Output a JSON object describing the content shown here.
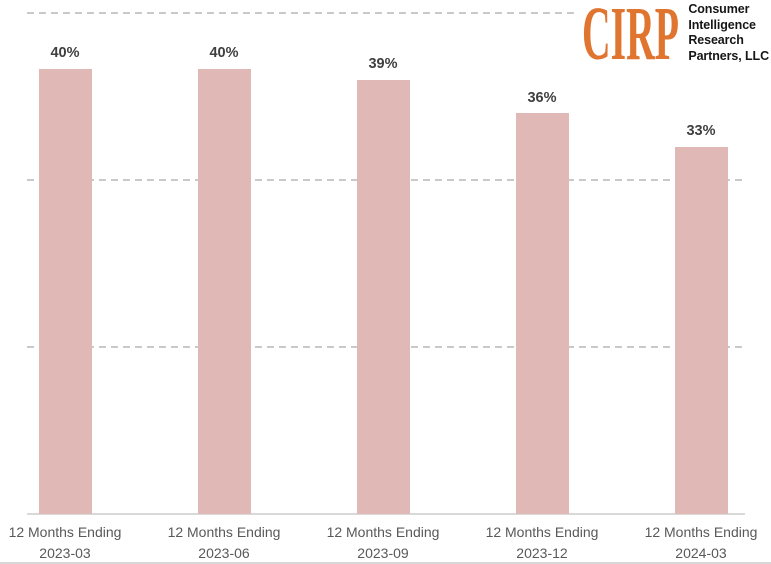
{
  "logo": {
    "brand": "CIRP",
    "brand_color": "#E0752F",
    "org_lines": [
      "Consumer",
      "Intelligence",
      "Research",
      "Partners, LLC"
    ],
    "text_color": "#161616"
  },
  "chart_data": {
    "type": "bar",
    "title": "",
    "xlabel": "",
    "ylabel": "",
    "categories": [
      "12 Months Ending 2023-03",
      "12 Months Ending 2023-06",
      "12 Months Ending 2023-09",
      "12 Months Ending 2023-12",
      "12 Months Ending 2024-03"
    ],
    "category_prefix": "12 Months Ending",
    "category_periods": [
      "2023-03",
      "2023-06",
      "2023-09",
      "2023-12",
      "2024-03"
    ],
    "values": [
      40,
      40,
      39,
      36,
      33
    ],
    "data_labels": [
      "40%",
      "40%",
      "39%",
      "36%",
      "33%"
    ],
    "ylim": [
      0,
      45
    ],
    "gridlines_pct": [
      15,
      30,
      45
    ],
    "grid": "dashed horizontal, no y-axis tick labels",
    "legend": "none",
    "bar_color": "#E0B8B6",
    "value_label_color": "#3F3F3F",
    "axis_label_color": "#595959",
    "gridline_color": "#C9C9C9",
    "axis_line_color": "#D9D9D9"
  }
}
